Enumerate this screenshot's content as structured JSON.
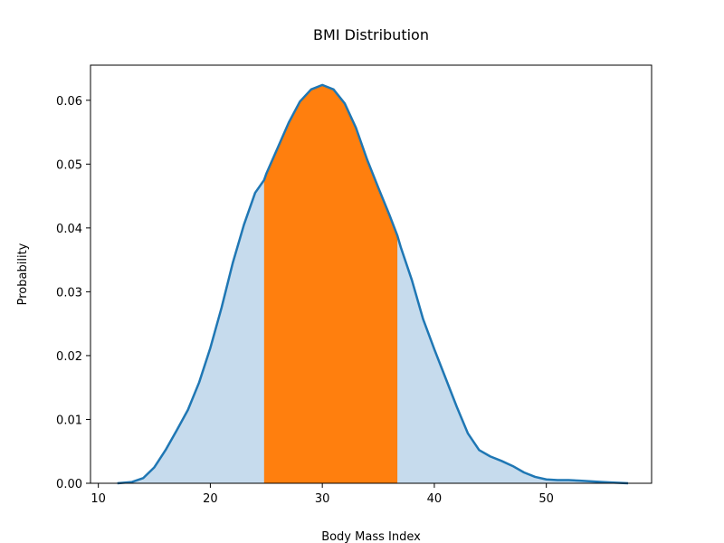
{
  "chart_data": {
    "type": "area",
    "title": "BMI Distribution",
    "xlabel": "Body Mass Index",
    "ylabel": "Probability",
    "xlim": [
      9.3,
      59.4
    ],
    "ylim": [
      0,
      0.0655
    ],
    "xticks": [
      10,
      20,
      30,
      40,
      50
    ],
    "yticks": [
      0.0,
      0.01,
      0.02,
      0.03,
      0.04,
      0.05,
      0.06
    ],
    "ytick_labels": [
      "0.00",
      "0.01",
      "0.02",
      "0.03",
      "0.04",
      "0.05",
      "0.06"
    ],
    "grid": false,
    "legend": "none",
    "highlight_range": [
      24.8,
      36.7
    ],
    "colors": {
      "line": "#1f77b4",
      "fill": "#c6dbed",
      "highlight": "#ff7f0e"
    },
    "series": [
      {
        "x": [
          11.7,
          13,
          14,
          15,
          16,
          17,
          18,
          19,
          20,
          21,
          22,
          23,
          24,
          24.8,
          25,
          26,
          27,
          28,
          29,
          30,
          31,
          32,
          33,
          34,
          35,
          36,
          36.7,
          37,
          38,
          39,
          40,
          41,
          42,
          43,
          44,
          45,
          46,
          47,
          48,
          49,
          50,
          51,
          52,
          53,
          54,
          55,
          56,
          57.3
        ],
        "y": [
          0.0,
          0.0002,
          0.0008,
          0.0025,
          0.0052,
          0.0083,
          0.0115,
          0.0158,
          0.0212,
          0.0275,
          0.0345,
          0.0405,
          0.0455,
          0.0475,
          0.0485,
          0.0525,
          0.0565,
          0.0598,
          0.0617,
          0.0624,
          0.0617,
          0.0595,
          0.0557,
          0.0507,
          0.0463,
          0.042,
          0.0388,
          0.037,
          0.0318,
          0.0257,
          0.021,
          0.0165,
          0.012,
          0.0078,
          0.0052,
          0.0042,
          0.0035,
          0.0027,
          0.0017,
          0.001,
          0.0006,
          0.0005,
          0.0005,
          0.0004,
          0.0003,
          0.0002,
          0.0001,
          0.0
        ]
      }
    ]
  }
}
